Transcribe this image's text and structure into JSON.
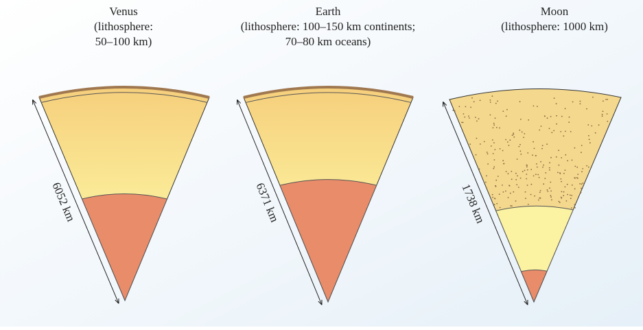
{
  "panels": [
    {
      "title": "Venus",
      "lines": [
        "(lithosphere:",
        "50–100 km)"
      ],
      "radius_label": "6052 km"
    },
    {
      "title": "Earth",
      "lines": [
        "(lithosphere: 100–150 km continents;",
        "70–80 km oceans)"
      ],
      "radius_label": "6371 km"
    },
    {
      "title": "Moon",
      "lines": [
        "(lithosphere: 1000 km)"
      ],
      "radius_label": "1738 km"
    }
  ]
}
